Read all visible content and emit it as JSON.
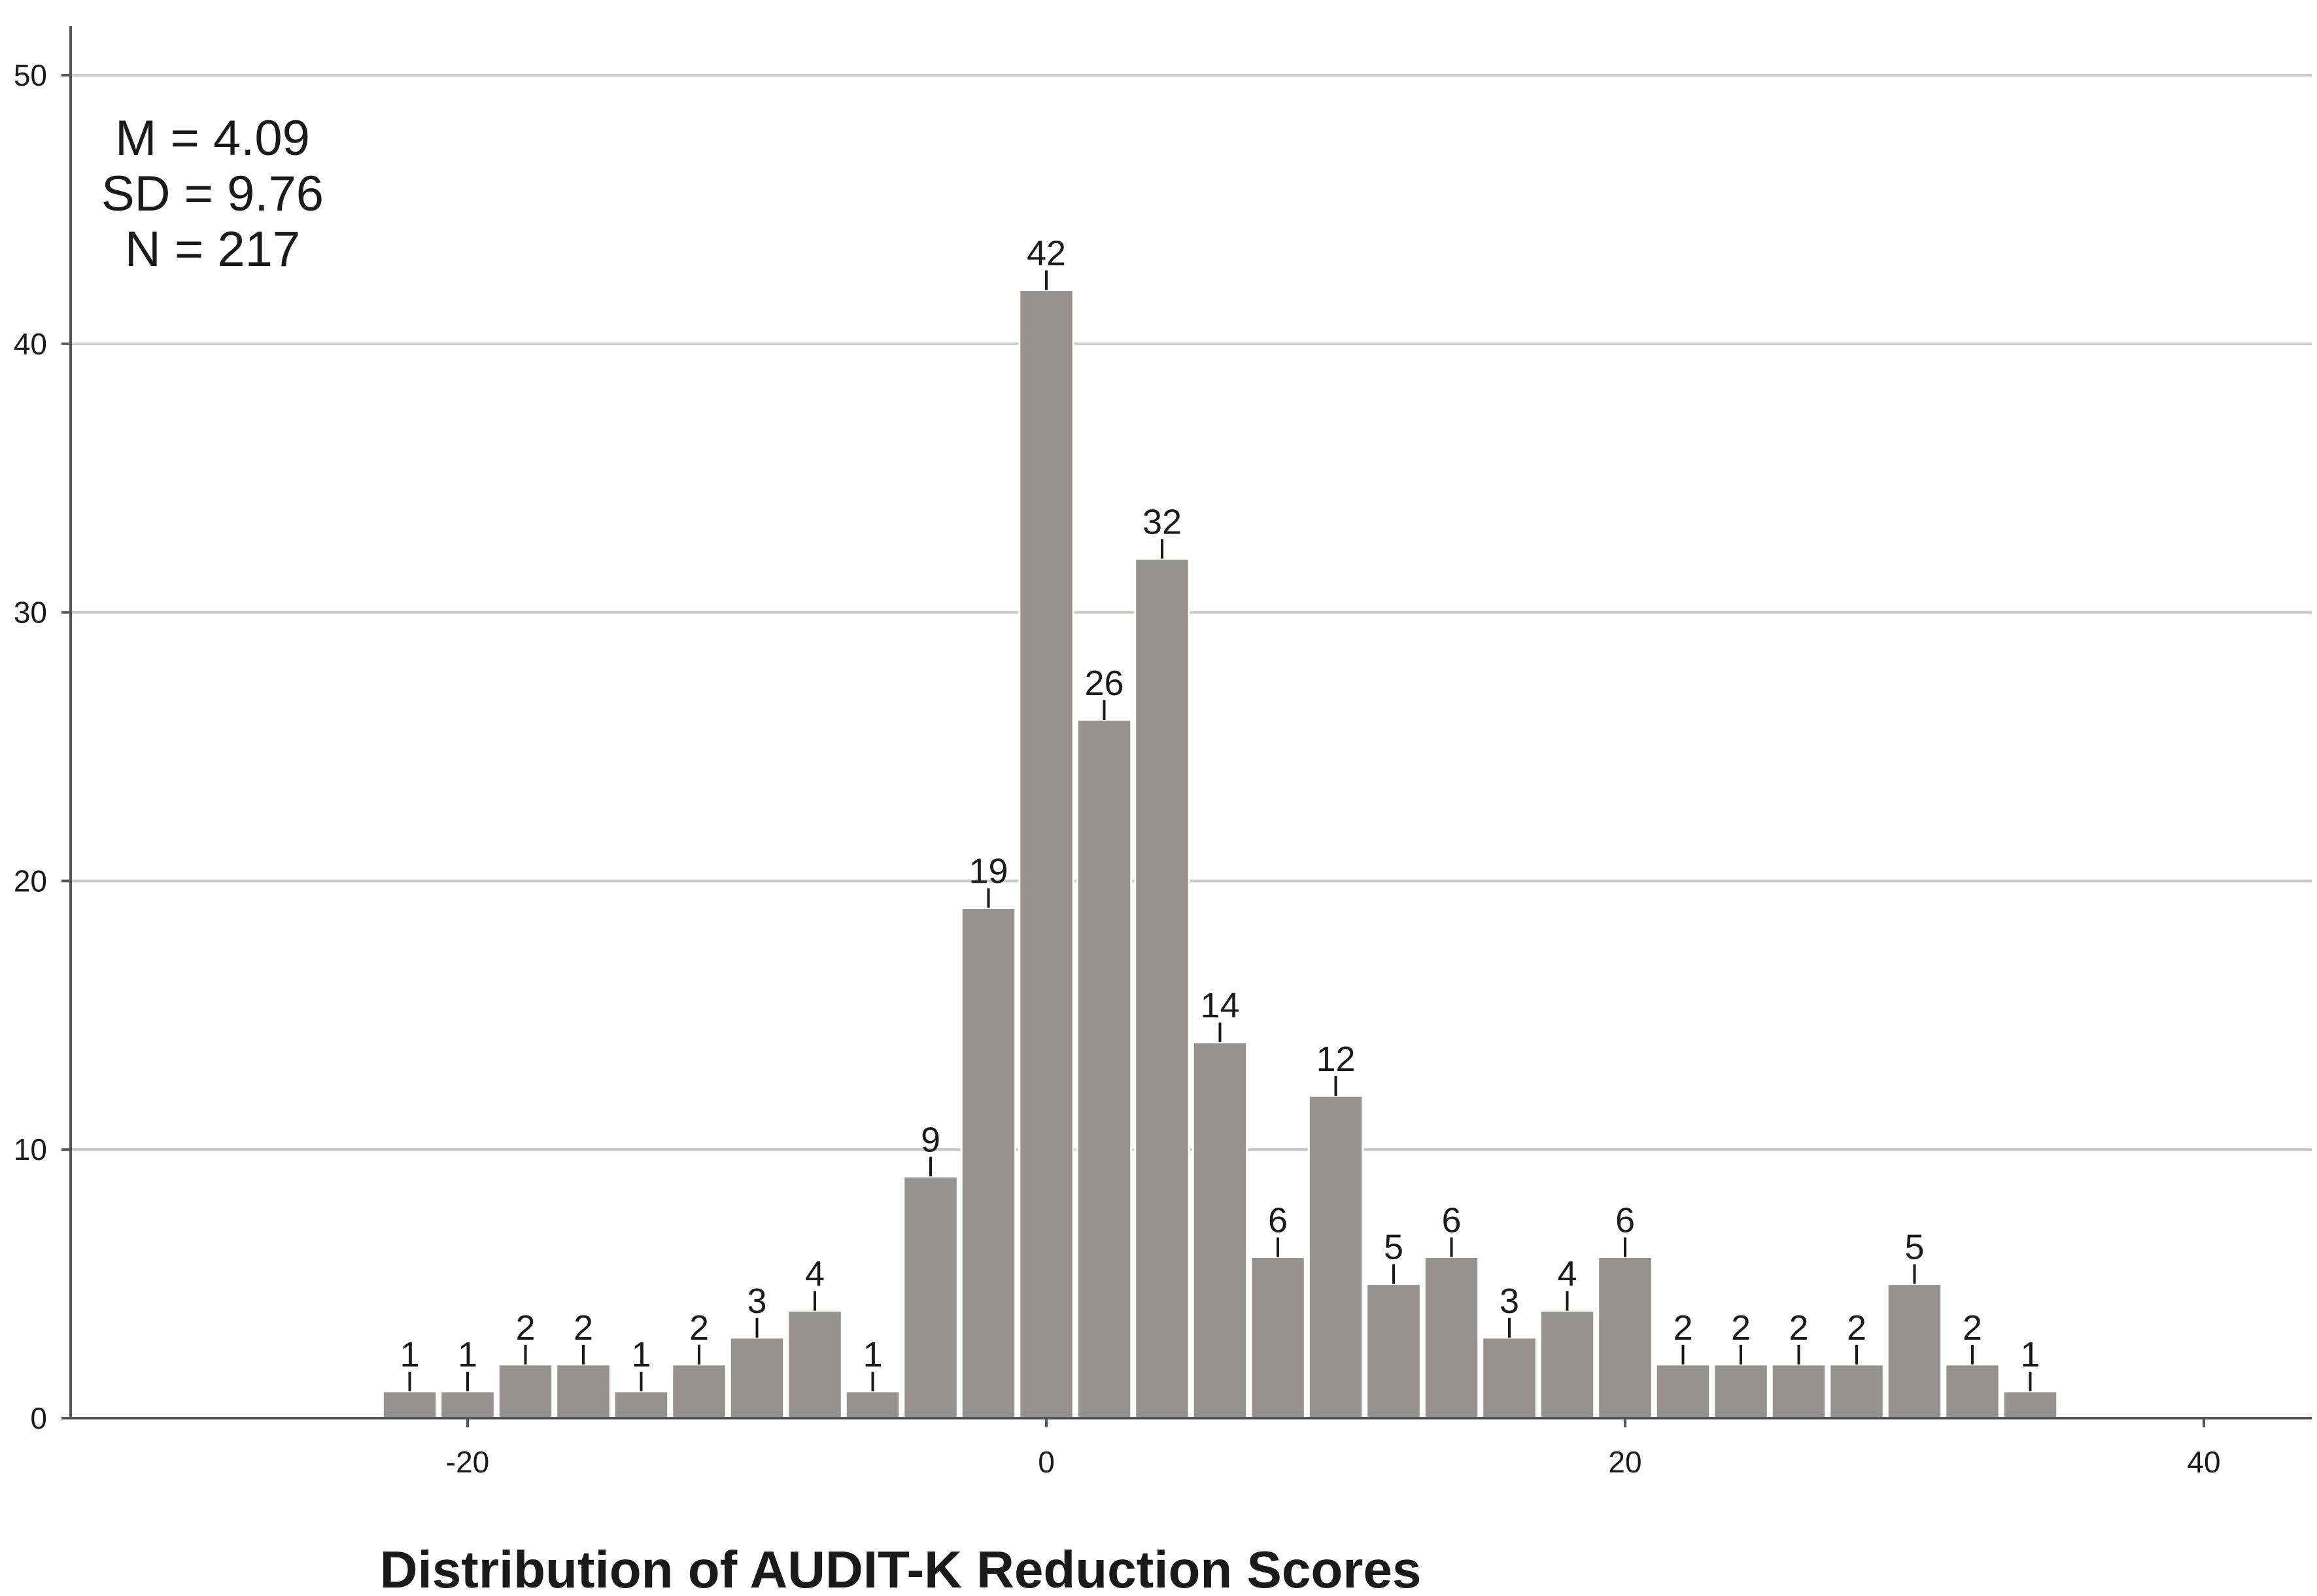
{
  "chart_data": {
    "type": "bar",
    "title": "Distribution of AUDIT-K Reduction Scores",
    "xlabel": "Distribution of AUDIT-K Reduction Scores",
    "ylabel": "",
    "bin_width": 2,
    "x": [
      -22,
      -20,
      -18,
      -16,
      -14,
      -12,
      -10,
      -8,
      -6,
      -4,
      -2,
      0,
      2,
      4,
      6,
      8,
      10,
      12,
      14,
      16,
      18,
      20,
      22,
      24,
      26,
      28,
      30,
      32,
      34
    ],
    "values": [
      1,
      1,
      2,
      2,
      1,
      2,
      3,
      4,
      1,
      9,
      19,
      42,
      26,
      32,
      14,
      6,
      12,
      5,
      6,
      3,
      4,
      6,
      2,
      2,
      2,
      2,
      5,
      2,
      1
    ],
    "xlim": [
      -36,
      44
    ],
    "ylim": [
      0,
      50
    ],
    "xticks": [
      -20,
      0,
      20,
      40
    ],
    "yticks": [
      0,
      10,
      20,
      30,
      40,
      50
    ],
    "grid": "horizontal",
    "bar_color": "#959291",
    "stats": [
      "M = 4.09",
      "SD = 9.76",
      "N = 217"
    ]
  }
}
